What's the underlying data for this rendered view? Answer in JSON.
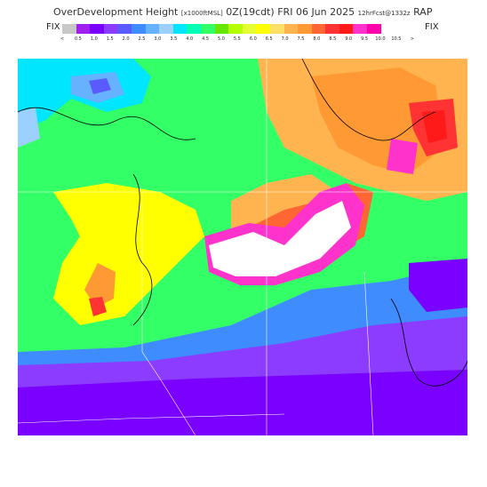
{
  "header": {
    "product": "OverDevelopment Height",
    "units": "[x1000ftMSL]",
    "valid": "0Z(19cdt)",
    "date": "FRI 06 Jun 2025",
    "forecast": "12hrFcst@1332z",
    "model": "RAP"
  },
  "legend": {
    "left_label": "FIX",
    "right_label": "FIX",
    "colors": [
      "#c8c8c8",
      "#a020f0",
      "#7a00ff",
      "#8c3cff",
      "#5a5aff",
      "#3f8cff",
      "#66b2ff",
      "#9bd0ff",
      "#00e6ff",
      "#00ffb4",
      "#33ff66",
      "#66e600",
      "#b4ff00",
      "#e6ff33",
      "#ffff00",
      "#ffe066",
      "#ffb450",
      "#ff9933",
      "#ff6633",
      "#ff3333",
      "#ff1a1a",
      "#ff33cc",
      "#ff00aa"
    ],
    "ticks": [
      "<",
      "0.5",
      "1.0",
      "1.5",
      "2.0",
      "2.5",
      "3.0",
      "3.5",
      "4.0",
      "4.5",
      "5.0",
      "5.5",
      "6.0",
      "6.5",
      "7.0",
      "7.5",
      "8.0",
      "8.5",
      "9.0",
      "9.5",
      "10.0",
      "10.5",
      ">"
    ]
  }
}
